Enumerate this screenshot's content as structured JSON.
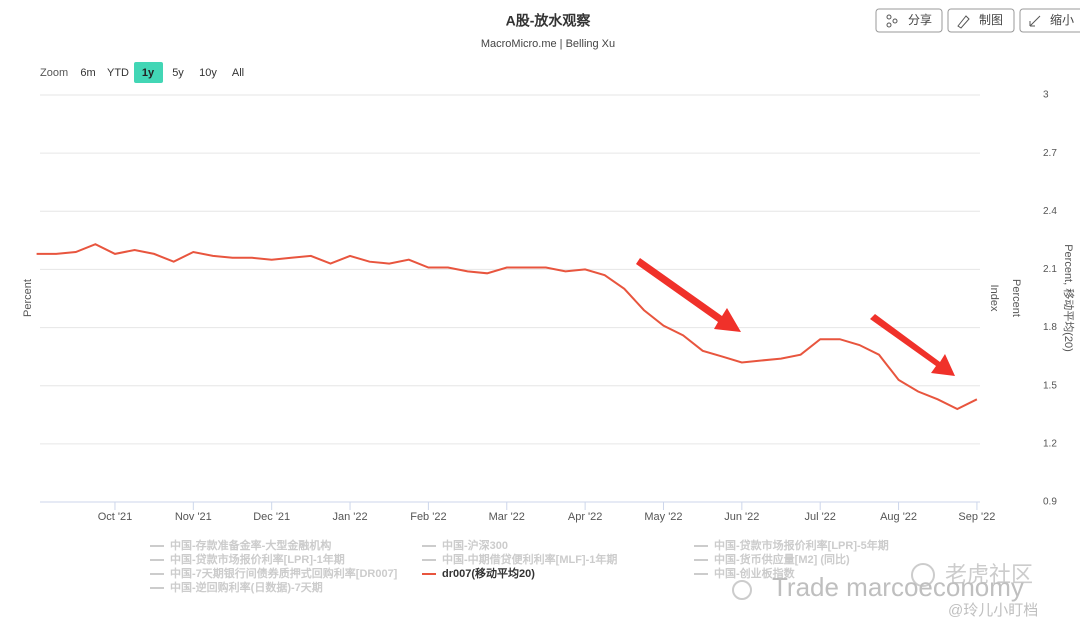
{
  "ui": {
    "buttons": [
      "分享",
      "制图",
      "缩小"
    ],
    "zoom": {
      "label": "Zoom",
      "options": [
        "6m",
        "YTD",
        "1y",
        "5y",
        "10y",
        "All"
      ],
      "selected": 2
    }
  },
  "chart_data": {
    "type": "line",
    "title": "A股-放水观察",
    "subtitle": "MacroMicro.me | Belling Xu",
    "y_axis_titles": {
      "left": "Percent",
      "right": [
        "Index",
        "Percent",
        "Percent, 移动平均(20)"
      ]
    },
    "categories": [
      null,
      null,
      null,
      null,
      "Oct '21",
      null,
      null,
      null,
      "Nov '21",
      null,
      null,
      null,
      "Dec '21",
      null,
      null,
      null,
      "Jan '22",
      null,
      null,
      null,
      "Feb '22",
      null,
      null,
      null,
      "Mar '22",
      null,
      null,
      null,
      "Apr '22",
      null,
      null,
      null,
      "May '22",
      null,
      null,
      null,
      "Jun '22",
      null,
      null,
      null,
      "Jul '22",
      null,
      null,
      null,
      "Aug '22",
      null,
      null,
      null,
      "Sep '22"
    ],
    "series": [
      {
        "name": "dr007(移动平均20)",
        "color": "#e8553e",
        "values": [
          2.18,
          2.18,
          2.19,
          2.23,
          2.18,
          2.2,
          2.18,
          2.14,
          2.19,
          2.17,
          2.16,
          2.16,
          2.15,
          2.16,
          2.17,
          2.13,
          2.17,
          2.14,
          2.13,
          2.15,
          2.11,
          2.11,
          2.09,
          2.08,
          2.11,
          2.11,
          2.11,
          2.09,
          2.1,
          2.07,
          2.0,
          1.89,
          1.81,
          1.76,
          1.68,
          1.65,
          1.62,
          1.63,
          1.64,
          1.66,
          1.74,
          1.74,
          1.71,
          1.66,
          1.53,
          1.47,
          1.43,
          1.38,
          1.43
        ]
      }
    ],
    "hidden_series": [
      "中国-存款准备金率-大型金融机构",
      "中国-沪深300",
      "中国-贷款市场报价利率[LPR]-5年期",
      "中国-贷款市场报价利率[LPR]-1年期",
      "中国-中期借贷便利利率[MLF]-1年期",
      "中国-货币供应量[M2] (同比)",
      "中国-7天期银行间债券质押式回购利率[DR007]",
      "中国-创业板指数",
      "中国-逆回购利率(日数据)-7天期"
    ],
    "ylim": [
      0.9,
      3
    ],
    "yticks": [
      0.9,
      1.2,
      1.5,
      1.8,
      2.1,
      2.4,
      2.7,
      3
    ],
    "grid": true
  },
  "watermark": {
    "brand": "老虎社区",
    "text": "Trade marcoeconomy",
    "author": "@玲儿小盯档"
  }
}
